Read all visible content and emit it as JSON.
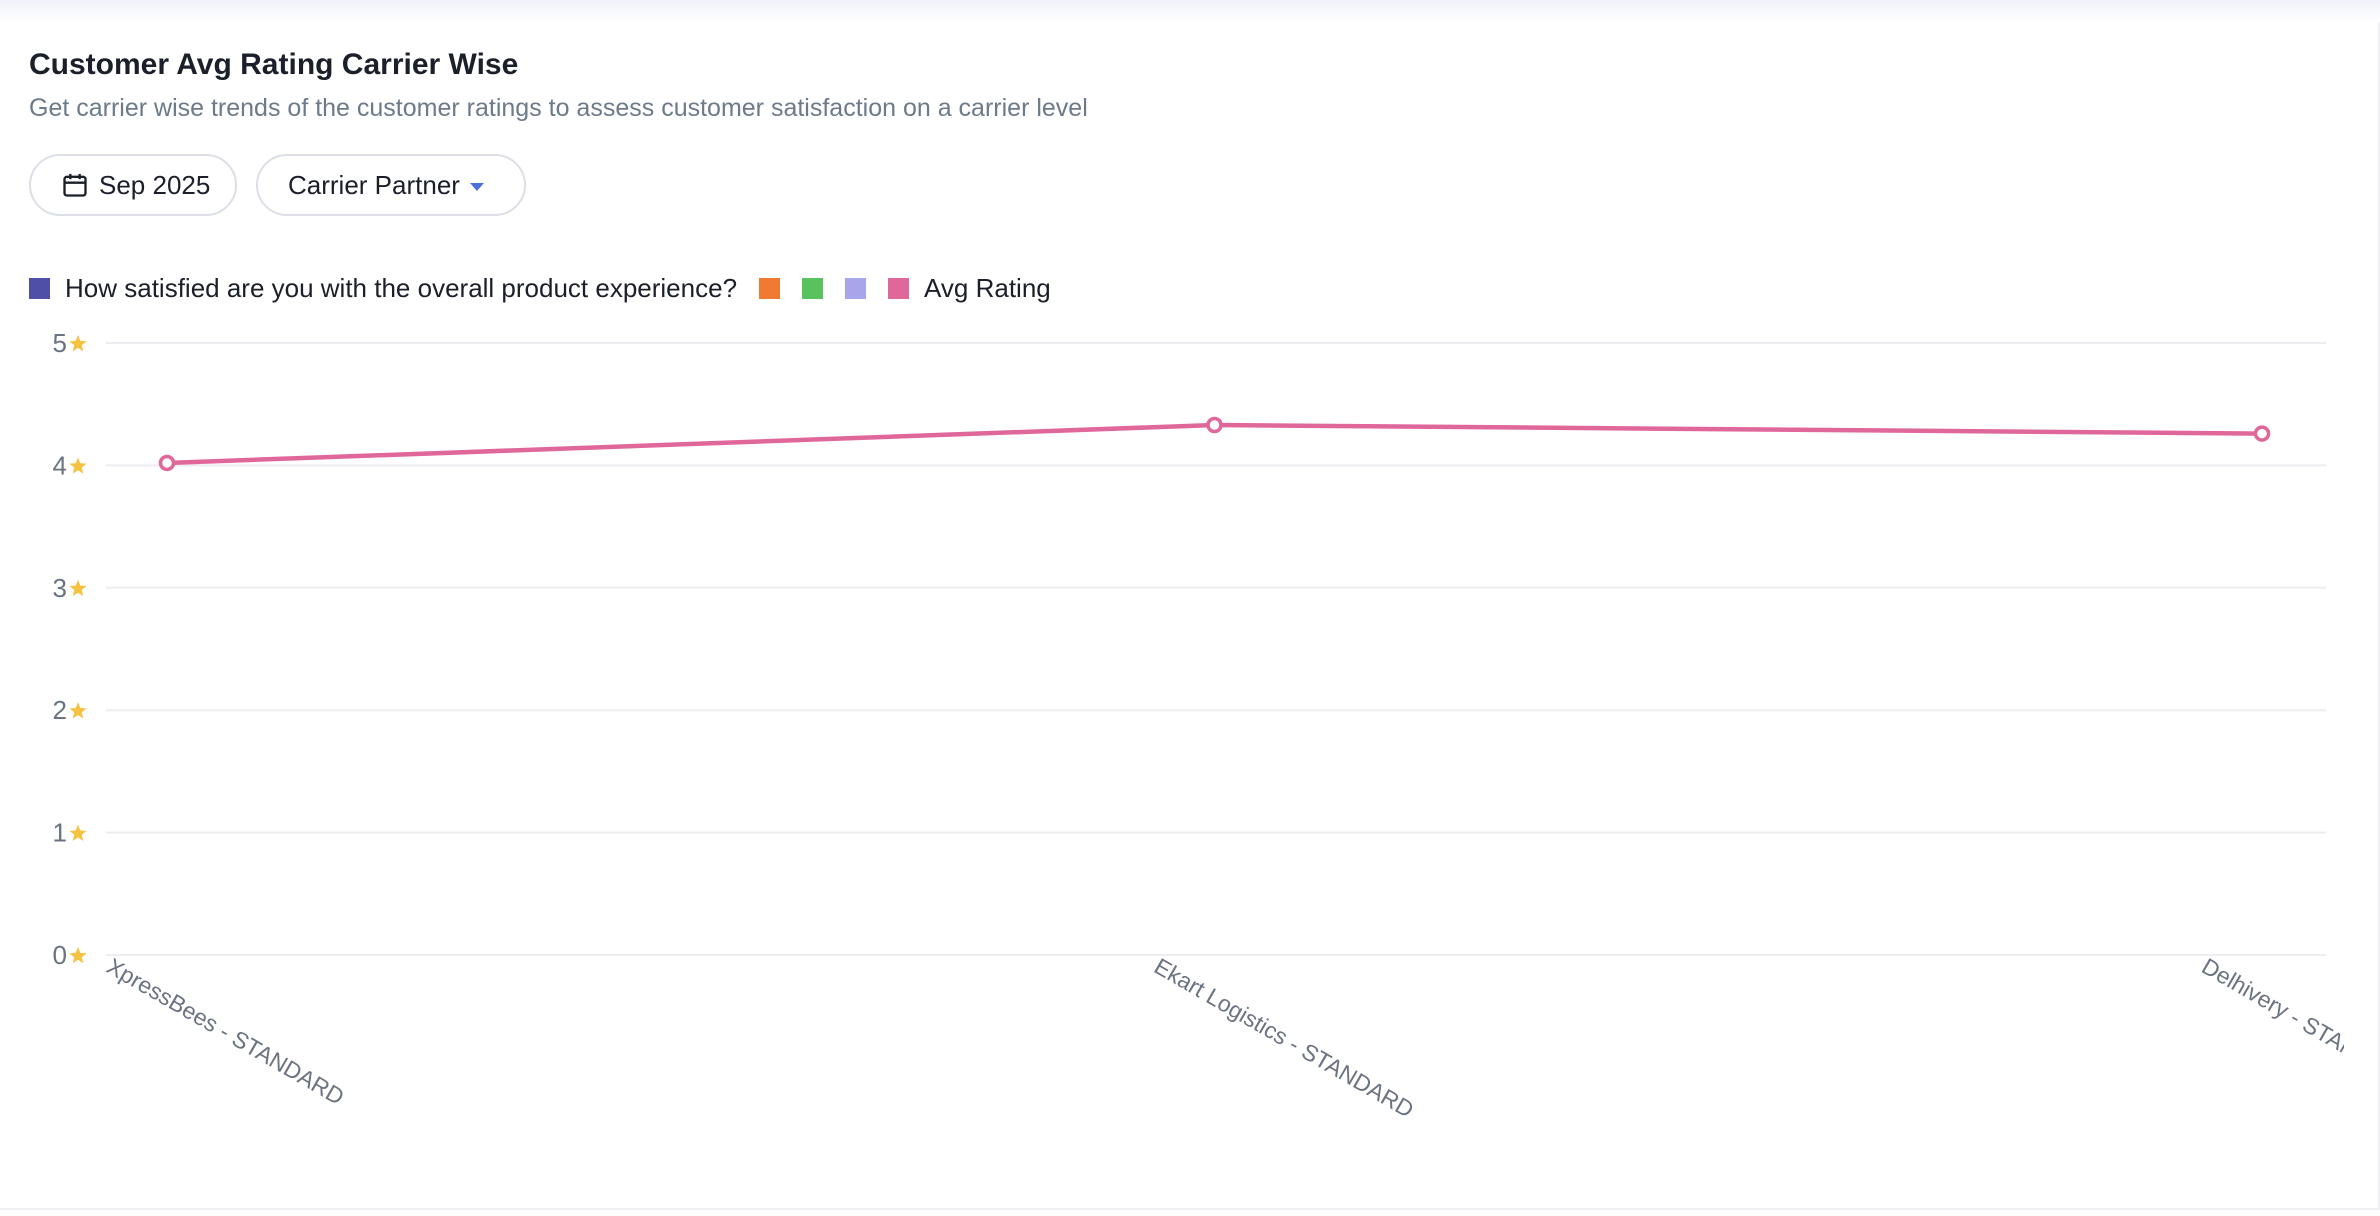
{
  "header": {
    "title": "Customer Avg Rating Carrier Wise",
    "subtitle": "Get carrier wise trends of the customer ratings to assess customer satisfaction on a carrier level"
  },
  "filters": {
    "date_label": "Sep 2025",
    "carrier_label": "Carrier Partner"
  },
  "legend": [
    {
      "label": "How satisfied are you with the overall product experience?",
      "color": "#4f4fa8"
    },
    {
      "label": "",
      "color": "#f07a32"
    },
    {
      "label": "",
      "color": "#57c25e"
    },
    {
      "label": "",
      "color": "#a7a6eb"
    },
    {
      "label": "Avg Rating",
      "color": "#e0679a"
    }
  ],
  "chart_data": {
    "type": "line",
    "categories": [
      "XpressBees - STANDARD",
      "Ekart Logistics - STANDARD",
      "Delhivery - STANDARD"
    ],
    "series": [
      {
        "name": "Avg Rating",
        "values": [
          4.02,
          4.33,
          4.26
        ],
        "color": "#e0679a"
      }
    ],
    "ylim": [
      0,
      5
    ],
    "yticks": [
      "0",
      "1",
      "2",
      "3",
      "4",
      "5"
    ],
    "ytick_icon": "star-icon",
    "star_color": "#f5c242",
    "grid": true
  }
}
